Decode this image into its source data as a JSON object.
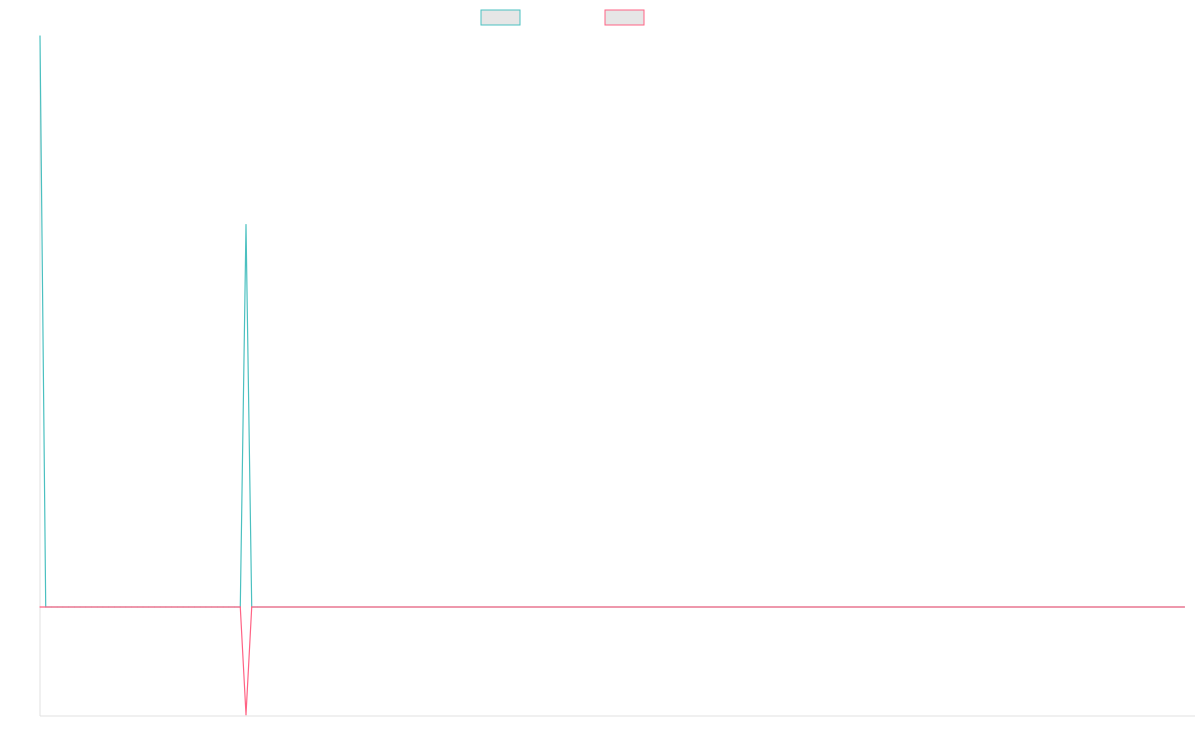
{
  "chart_data": {
    "type": "line",
    "title": "",
    "xlabel": "",
    "ylabel": "",
    "x_count": 201,
    "ylim": [
      -1.0,
      6.0
    ],
    "grid": false,
    "legend": {
      "placement": "top-center",
      "shows_labels": false
    },
    "series": [
      {
        "color": "#4bc0c0",
        "fill": "#e6e6e6",
        "points": [
          [
            0,
            5.3
          ],
          [
            1,
            0.0
          ],
          [
            2,
            0.0
          ],
          [
            3,
            0.0
          ],
          [
            4,
            0.0
          ],
          [
            5,
            0.0
          ],
          [
            6,
            0.0
          ],
          [
            7,
            0.0
          ],
          [
            8,
            0.0
          ],
          [
            9,
            0.0
          ],
          [
            10,
            0.0
          ],
          [
            11,
            0.0
          ],
          [
            12,
            0.0
          ],
          [
            13,
            0.0
          ],
          [
            14,
            0.0
          ],
          [
            15,
            0.0
          ],
          [
            16,
            0.0
          ],
          [
            17,
            0.0
          ],
          [
            18,
            0.0
          ],
          [
            19,
            0.0
          ],
          [
            20,
            0.0
          ],
          [
            21,
            0.0
          ],
          [
            22,
            0.0
          ],
          [
            23,
            0.0
          ],
          [
            24,
            0.0
          ],
          [
            25,
            0.0
          ],
          [
            26,
            0.0
          ],
          [
            27,
            0.0
          ],
          [
            28,
            0.0
          ],
          [
            29,
            0.0
          ],
          [
            30,
            0.0
          ],
          [
            31,
            0.0
          ],
          [
            32,
            0.0
          ],
          [
            33,
            0.0
          ],
          [
            34,
            0.0
          ],
          [
            35,
            0.0
          ],
          [
            36,
            3.55
          ],
          [
            37,
            0.0
          ],
          [
            38,
            0.0
          ],
          [
            200,
            0.0
          ]
        ]
      },
      {
        "color": "#ff6384",
        "fill": "#e6e6e6",
        "points": [
          [
            0,
            0.0
          ],
          [
            35,
            0.0
          ],
          [
            36,
            -1.0
          ],
          [
            37,
            0.0
          ],
          [
            200,
            0.0
          ]
        ]
      }
    ]
  }
}
